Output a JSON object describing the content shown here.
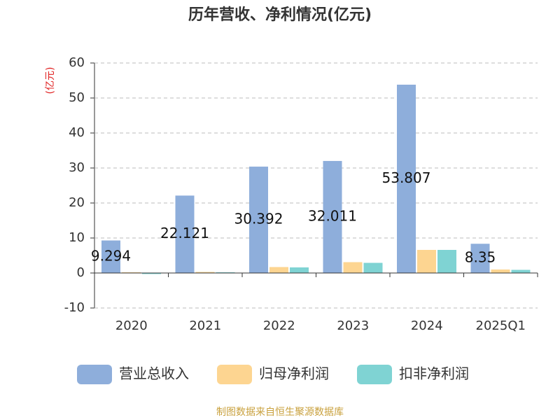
{
  "chart_data": {
    "type": "bar",
    "title": "历年营收、净利情况(亿元)",
    "y_label": "(亿元)",
    "source": "制图数据来自恒生聚源数据库",
    "categories": [
      "2020",
      "2021",
      "2022",
      "2023",
      "2024",
      "2025Q1"
    ],
    "series": [
      {
        "name": "营业总收入",
        "color": "#8eaedb",
        "values": [
          9.294,
          22.121,
          30.392,
          32.011,
          53.807,
          8.35
        ],
        "labels": true
      },
      {
        "name": "归母净利润",
        "color": "#fdd591",
        "values": [
          0.2,
          0.3,
          1.7,
          3.1,
          6.6,
          1.0
        ]
      },
      {
        "name": "扣非净利润",
        "color": "#7fd3d3",
        "values": [
          -0.3,
          0.2,
          1.6,
          2.9,
          6.6,
          0.9
        ]
      }
    ],
    "ylim": [
      -10,
      60
    ],
    "yticks": [
      -10,
      0,
      10,
      20,
      30,
      40,
      50,
      60
    ],
    "grid": true,
    "legend": "bottom"
  }
}
